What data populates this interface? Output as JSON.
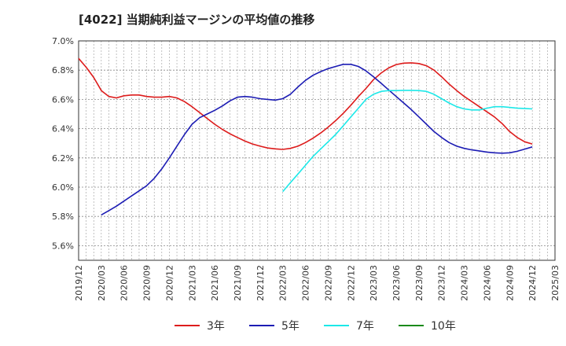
{
  "title": "[4022]  当期純利益マージンの平均値の推移",
  "chart_data": {
    "type": "line",
    "title": "[4022]  当期純利益マージンの平均値の推移",
    "xlabel": "",
    "ylabel": "",
    "x_ticks": [
      "2019/12",
      "2020/03",
      "2020/06",
      "2020/09",
      "2020/12",
      "2021/03",
      "2021/06",
      "2021/09",
      "2021/12",
      "2022/03",
      "2022/06",
      "2022/09",
      "2022/12",
      "2023/03",
      "2023/06",
      "2023/09",
      "2023/12",
      "2024/03",
      "2024/06",
      "2024/09",
      "2024/12",
      "2025/03"
    ],
    "y_ticks": [
      "5.6%",
      "5.8%",
      "6.0%",
      "6.2%",
      "6.4%",
      "6.6%",
      "6.8%",
      "7.0%"
    ],
    "ylim": [
      5.5,
      7.0
    ],
    "xlim": [
      "2019/12",
      "2025/03"
    ],
    "grid": true,
    "legend_position": "bottom",
    "series": [
      {
        "name": "3年",
        "color": "#dd1c1c",
        "x": [
          "2019/12",
          "2020/01",
          "2020/02",
          "2020/03",
          "2020/04",
          "2020/05",
          "2020/06",
          "2020/07",
          "2020/08",
          "2020/09",
          "2020/10",
          "2020/11",
          "2020/12",
          "2021/01",
          "2021/02",
          "2021/03",
          "2021/04",
          "2021/05",
          "2021/06",
          "2021/07",
          "2021/08",
          "2021/09",
          "2021/10",
          "2021/11",
          "2021/12",
          "2022/01",
          "2022/02",
          "2022/03",
          "2022/04",
          "2022/05",
          "2022/06",
          "2022/07",
          "2022/08",
          "2022/09",
          "2022/10",
          "2022/11",
          "2022/12",
          "2023/01",
          "2023/02",
          "2023/03",
          "2023/04",
          "2023/05",
          "2023/06",
          "2023/07",
          "2023/08",
          "2023/09",
          "2023/10",
          "2023/11",
          "2023/12",
          "2024/01",
          "2024/02",
          "2024/03",
          "2024/04",
          "2024/05",
          "2024/06",
          "2024/07",
          "2024/08",
          "2024/09",
          "2024/10",
          "2024/11",
          "2024/12"
        ],
        "values": [
          6.88,
          6.82,
          6.75,
          6.66,
          6.62,
          6.61,
          6.625,
          6.63,
          6.63,
          6.62,
          6.615,
          6.615,
          6.62,
          6.61,
          6.585,
          6.55,
          6.51,
          6.47,
          6.43,
          6.395,
          6.365,
          6.34,
          6.315,
          6.295,
          6.28,
          6.268,
          6.262,
          6.258,
          6.265,
          6.28,
          6.305,
          6.335,
          6.37,
          6.41,
          6.455,
          6.505,
          6.56,
          6.62,
          6.675,
          6.735,
          6.78,
          6.815,
          6.838,
          6.848,
          6.85,
          6.845,
          6.83,
          6.8,
          6.755,
          6.705,
          6.66,
          6.62,
          6.585,
          6.55,
          6.515,
          6.48,
          6.435,
          6.38,
          6.34,
          6.31,
          6.295
        ]
      },
      {
        "name": "5年",
        "color": "#1c1cb4",
        "x": [
          "2020/03",
          "2020/04",
          "2020/05",
          "2020/06",
          "2020/07",
          "2020/08",
          "2020/09",
          "2020/10",
          "2020/11",
          "2020/12",
          "2021/01",
          "2021/02",
          "2021/03",
          "2021/04",
          "2021/05",
          "2021/06",
          "2021/07",
          "2021/08",
          "2021/09",
          "2021/10",
          "2021/11",
          "2021/12",
          "2022/01",
          "2022/02",
          "2022/03",
          "2022/04",
          "2022/05",
          "2022/06",
          "2022/07",
          "2022/08",
          "2022/09",
          "2022/10",
          "2022/11",
          "2022/12",
          "2023/01",
          "2023/02",
          "2023/03",
          "2023/04",
          "2023/05",
          "2023/06",
          "2023/07",
          "2023/08",
          "2023/09",
          "2023/10",
          "2023/11",
          "2023/12",
          "2024/01",
          "2024/02",
          "2024/03",
          "2024/04",
          "2024/05",
          "2024/06",
          "2024/07",
          "2024/08",
          "2024/09",
          "2024/10",
          "2024/11",
          "2024/12"
        ],
        "values": [
          5.81,
          5.84,
          5.87,
          5.905,
          5.94,
          5.975,
          6.01,
          6.06,
          6.125,
          6.2,
          6.28,
          6.36,
          6.43,
          6.475,
          6.5,
          6.525,
          6.555,
          6.59,
          6.615,
          6.62,
          6.615,
          6.605,
          6.6,
          6.595,
          6.605,
          6.635,
          6.685,
          6.73,
          6.765,
          6.79,
          6.81,
          6.825,
          6.84,
          6.84,
          6.825,
          6.795,
          6.755,
          6.71,
          6.665,
          6.62,
          6.575,
          6.53,
          6.48,
          6.43,
          6.38,
          6.34,
          6.305,
          6.28,
          6.265,
          6.255,
          6.248,
          6.24,
          6.235,
          6.232,
          6.235,
          6.245,
          6.26,
          6.275
        ]
      },
      {
        "name": "7年",
        "color": "#1ce8e8",
        "x": [
          "2022/03",
          "2022/04",
          "2022/05",
          "2022/06",
          "2022/07",
          "2022/08",
          "2022/09",
          "2022/10",
          "2022/11",
          "2022/12",
          "2023/01",
          "2023/02",
          "2023/03",
          "2023/04",
          "2023/05",
          "2023/06",
          "2023/07",
          "2023/08",
          "2023/09",
          "2023/10",
          "2023/11",
          "2023/12",
          "2024/01",
          "2024/02",
          "2024/03",
          "2024/04",
          "2024/05",
          "2024/06",
          "2024/07",
          "2024/08",
          "2024/09",
          "2024/10",
          "2024/11",
          "2024/12"
        ],
        "values": [
          5.97,
          6.03,
          6.09,
          6.15,
          6.21,
          6.26,
          6.31,
          6.36,
          6.42,
          6.48,
          6.54,
          6.6,
          6.635,
          6.655,
          6.66,
          6.66,
          6.662,
          6.662,
          6.66,
          6.655,
          6.635,
          6.605,
          6.575,
          6.55,
          6.535,
          6.528,
          6.528,
          6.54,
          6.55,
          6.55,
          6.545,
          6.54,
          6.538,
          6.535
        ]
      },
      {
        "name": "10年",
        "color": "#1a8a1a",
        "x": [],
        "values": []
      }
    ]
  }
}
